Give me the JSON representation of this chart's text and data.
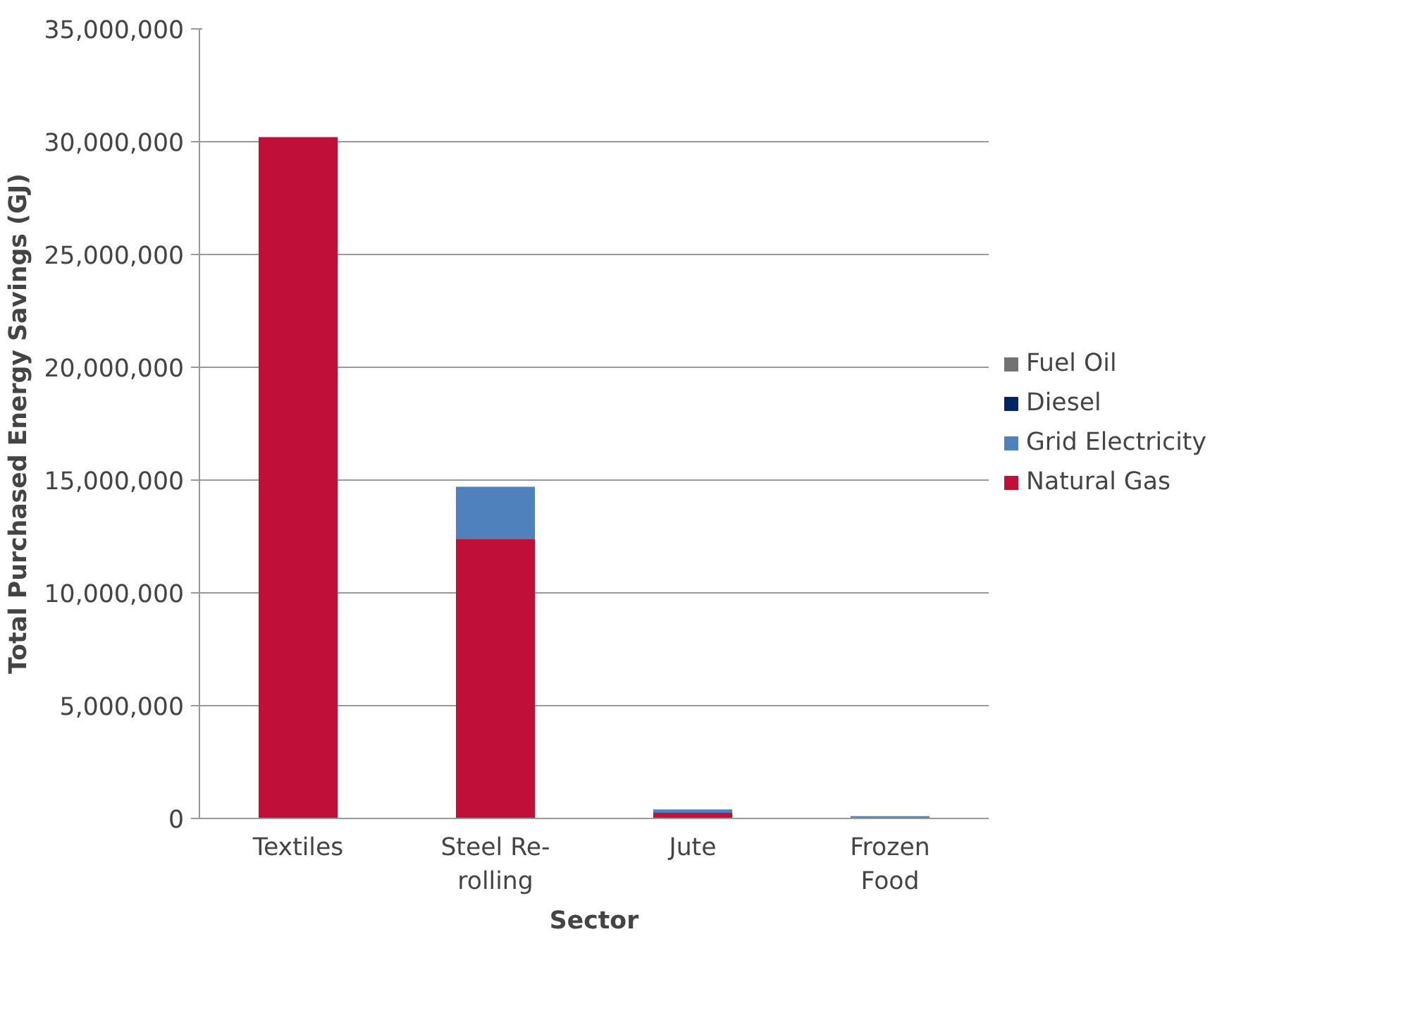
{
  "chart_data": {
    "type": "bar",
    "stacked": true,
    "xlabel": "Sector",
    "ylabel": "Total Purchased Energy Savings (GJ)",
    "categories": [
      "Textiles",
      "Steel Re-rolling",
      "Jute",
      "Frozen Food"
    ],
    "series": [
      {
        "name": "Natural Gas",
        "color": "#c0103a",
        "values": [
          30200000,
          12400000,
          250000,
          0
        ]
      },
      {
        "name": "Grid Electricity",
        "color": "#4f81bd",
        "values": [
          0,
          2300000,
          150000,
          100000
        ]
      },
      {
        "name": "Diesel",
        "color": "#002366",
        "values": [
          0,
          0,
          0,
          0
        ]
      },
      {
        "name": "Fuel Oil",
        "color": "#727272",
        "values": [
          0,
          0,
          0,
          0
        ]
      }
    ],
    "ylim": [
      0,
      35000000
    ],
    "yticks": [
      {
        "value": 0,
        "label": "0"
      },
      {
        "value": 5000000,
        "label": "5,000,000"
      },
      {
        "value": 10000000,
        "label": "10,000,000"
      },
      {
        "value": 15000000,
        "label": "15,000,000"
      },
      {
        "value": 20000000,
        "label": "20,000,000"
      },
      {
        "value": 25000000,
        "label": "25,000,000"
      },
      {
        "value": 30000000,
        "label": "30,000,000"
      },
      {
        "value": 35000000,
        "label": "35,000,000"
      }
    ],
    "grid": "y",
    "legend": "right"
  }
}
